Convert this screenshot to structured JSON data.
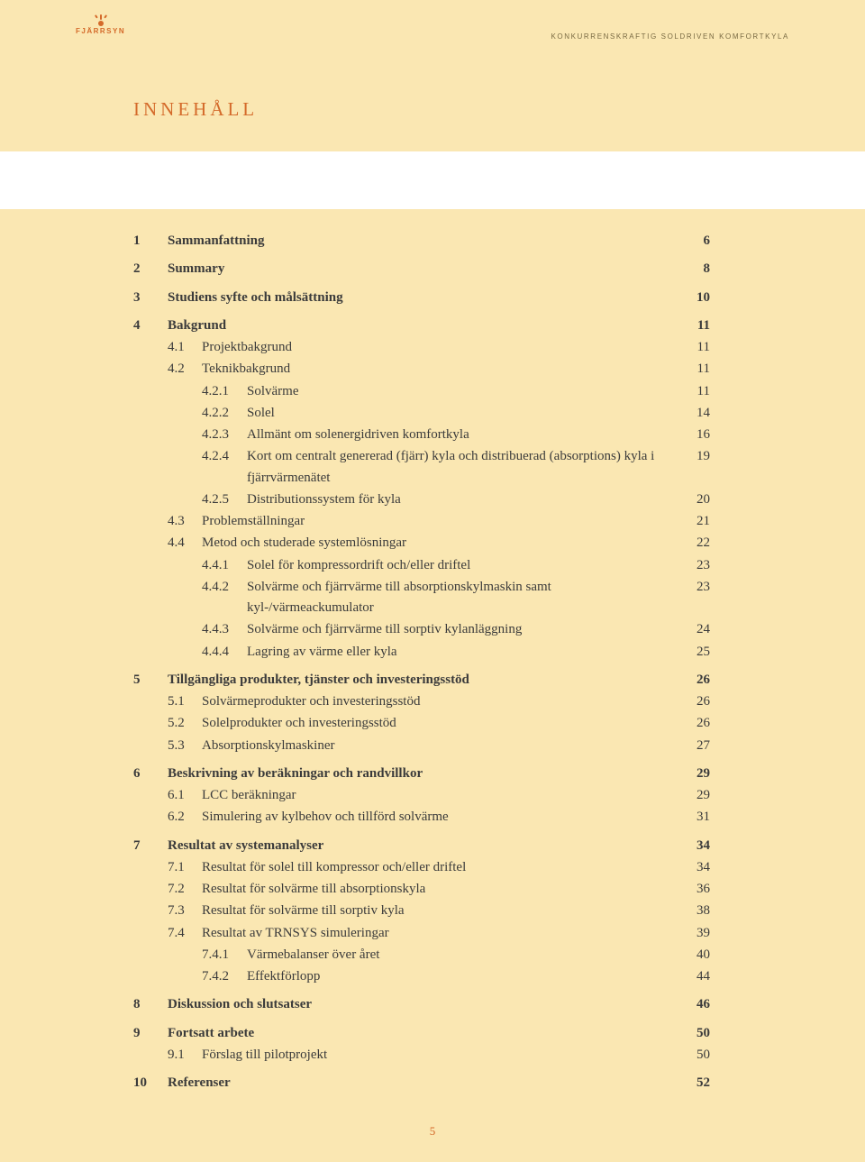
{
  "logo_text": "FJÄRRSYN",
  "header_text": "KONKURRENSKRAFTIG SOLDRIVEN KOMFORTKYLA",
  "title": "innehåll",
  "footer_page": "5",
  "colors": {
    "page_bg": "#fae7b2",
    "band_bg": "#ffffff",
    "accent": "#d46a2a",
    "text": "#3b3b3b",
    "header_text": "#7a6b43"
  },
  "toc": [
    {
      "level": 1,
      "num": "1",
      "label": "Sammanfattning",
      "page": "6",
      "bold": true,
      "gap": false
    },
    {
      "level": 1,
      "num": "2",
      "label": "Summary",
      "page": "8",
      "bold": true,
      "gap": true
    },
    {
      "level": 1,
      "num": "3",
      "label": "Studiens syfte och målsättning",
      "page": "10",
      "bold": true,
      "gap": true
    },
    {
      "level": 1,
      "num": "4",
      "label": "Bakgrund",
      "page": "11",
      "bold": true,
      "gap": true
    },
    {
      "level": 2,
      "num": "4.1",
      "label": "Projektbakgrund",
      "page": "11",
      "bold": false,
      "gap": false
    },
    {
      "level": 2,
      "num": "4.2",
      "label": "Teknikbakgrund",
      "page": "11",
      "bold": false,
      "gap": false
    },
    {
      "level": 3,
      "num": "4.2.1",
      "label": "Solvärme",
      "page": "11",
      "bold": false,
      "gap": false
    },
    {
      "level": 3,
      "num": "4.2.2",
      "label": "Solel",
      "page": "14",
      "bold": false,
      "gap": false
    },
    {
      "level": 3,
      "num": "4.2.3",
      "label": "Allmänt om solenergidriven komfortkyla",
      "page": "16",
      "bold": false,
      "gap": false
    },
    {
      "level": 3,
      "num": "4.2.4",
      "label": "Kort om centralt genererad (fjärr) kyla och distribuerad (absorptions) kyla i fjärrvärmenätet",
      "page": "19",
      "bold": false,
      "gap": false
    },
    {
      "level": 3,
      "num": "4.2.5",
      "label": "Distributionssystem för kyla",
      "page": "20",
      "bold": false,
      "gap": false
    },
    {
      "level": 2,
      "num": "4.3",
      "label": "Problemställningar",
      "page": "21",
      "bold": false,
      "gap": false
    },
    {
      "level": 2,
      "num": "4.4",
      "label": "Metod och studerade systemlösningar",
      "page": "22",
      "bold": false,
      "gap": false
    },
    {
      "level": 3,
      "num": "4.4.1",
      "label": "Solel för kompressordrift och/eller driftel",
      "page": "23",
      "bold": false,
      "gap": false
    },
    {
      "level": 3,
      "num": "4.4.2",
      "label": "Solvärme och fjärrvärme till absorptionskylmaskin samt kyl-/värmeackumulator",
      "page": "23",
      "bold": false,
      "gap": false
    },
    {
      "level": 3,
      "num": "4.4.3",
      "label": "Solvärme och fjärrvärme till sorptiv kylanläggning",
      "page": "24",
      "bold": false,
      "gap": false
    },
    {
      "level": 3,
      "num": "4.4.4",
      "label": "Lagring av värme eller kyla",
      "page": "25",
      "bold": false,
      "gap": false
    },
    {
      "level": 1,
      "num": "5",
      "label": "Tillgängliga produkter, tjänster och investeringsstöd",
      "page": "26",
      "bold": true,
      "gap": true
    },
    {
      "level": 2,
      "num": "5.1",
      "label": "Solvärmeprodukter och investeringsstöd",
      "page": "26",
      "bold": false,
      "gap": false
    },
    {
      "level": 2,
      "num": "5.2",
      "label": "Solelprodukter och investeringsstöd",
      "page": "26",
      "bold": false,
      "gap": false
    },
    {
      "level": 2,
      "num": "5.3",
      "label": "Absorptionskylmaskiner",
      "page": "27",
      "bold": false,
      "gap": false
    },
    {
      "level": 1,
      "num": "6",
      "label": "Beskrivning av beräkningar och randvillkor",
      "page": "29",
      "bold": true,
      "gap": true
    },
    {
      "level": 2,
      "num": "6.1",
      "label": "LCC beräkningar",
      "page": "29",
      "bold": false,
      "gap": false
    },
    {
      "level": 2,
      "num": "6.2",
      "label": "Simulering av kylbehov och tillförd solvärme",
      "page": "31",
      "bold": false,
      "gap": false
    },
    {
      "level": 1,
      "num": "7",
      "label": "Resultat av systemanalyser",
      "page": "34",
      "bold": true,
      "gap": true
    },
    {
      "level": 2,
      "num": "7.1",
      "label": "Resultat för solel till kompressor och/eller driftel",
      "page": "34",
      "bold": false,
      "gap": false
    },
    {
      "level": 2,
      "num": "7.2",
      "label": "Resultat för solvärme till absorptionskyla",
      "page": "36",
      "bold": false,
      "gap": false
    },
    {
      "level": 2,
      "num": "7.3",
      "label": "Resultat för solvärme till sorptiv kyla",
      "page": "38",
      "bold": false,
      "gap": false
    },
    {
      "level": 2,
      "num": "7.4",
      "label": "Resultat av TRNSYS simuleringar",
      "page": "39",
      "bold": false,
      "gap": false
    },
    {
      "level": 3,
      "num": "7.4.1",
      "label": "Värmebalanser över året",
      "page": "40",
      "bold": false,
      "gap": false
    },
    {
      "level": 3,
      "num": "7.4.2",
      "label": "Effektförlopp",
      "page": "44",
      "bold": false,
      "gap": false
    },
    {
      "level": 1,
      "num": "8",
      "label": "Diskussion och slutsatser",
      "page": "46",
      "bold": true,
      "gap": true
    },
    {
      "level": 1,
      "num": "9",
      "label": "Fortsatt arbete",
      "page": "50",
      "bold": true,
      "gap": true
    },
    {
      "level": 2,
      "num": "9.1",
      "label": "Förslag till pilotprojekt",
      "page": "50",
      "bold": false,
      "gap": false
    },
    {
      "level": 1,
      "num": "10",
      "label": "Referenser",
      "page": "52",
      "bold": true,
      "gap": true
    }
  ]
}
